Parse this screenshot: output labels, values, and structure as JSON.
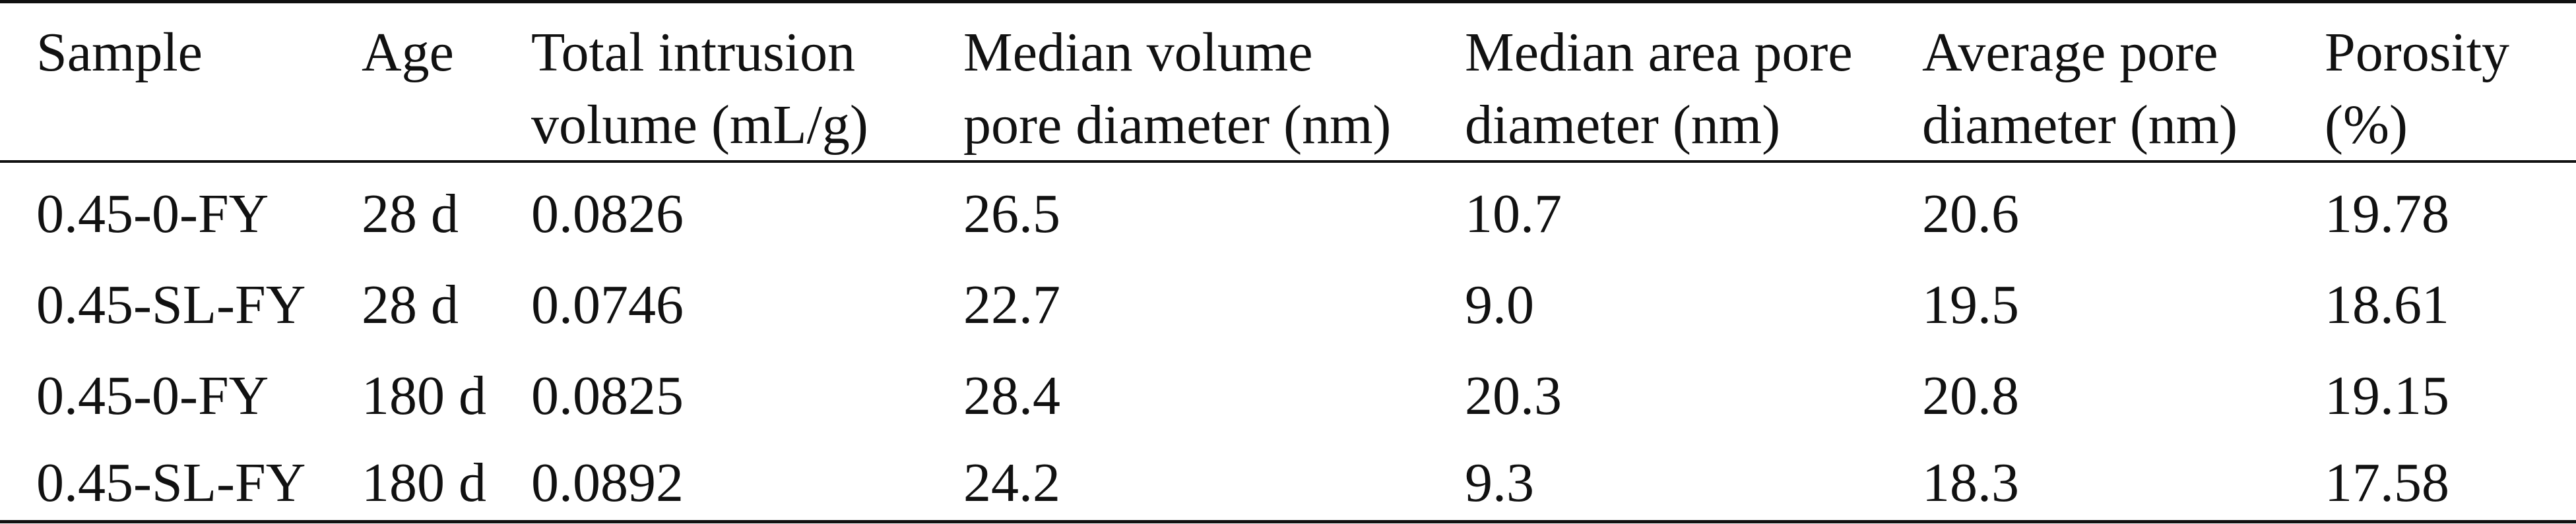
{
  "table": {
    "headers": [
      [
        "Sample"
      ],
      [
        "Age"
      ],
      [
        "Total intrusion",
        "volume (mL/g)"
      ],
      [
        "Median volume",
        "pore diameter (nm)"
      ],
      [
        "Median area pore",
        "diameter (nm)"
      ],
      [
        "Average pore",
        "diameter (nm)"
      ],
      [
        "Porosity",
        "(%)"
      ]
    ],
    "rows": [
      [
        "0.45-0-FY",
        "28 d",
        "0.0826",
        "26.5",
        "10.7",
        "20.6",
        "19.78"
      ],
      [
        "0.45-SL-FY",
        "28 d",
        "0.0746",
        "22.7",
        "9.0",
        "19.5",
        "18.61"
      ],
      [
        "0.45-0-FY",
        "180 d",
        "0.0825",
        "28.4",
        "20.3",
        "20.8",
        "19.15"
      ],
      [
        "0.45-SL-FY",
        "180 d",
        "0.0892",
        "24.2",
        "9.3",
        "18.3",
        "17.58"
      ]
    ]
  }
}
